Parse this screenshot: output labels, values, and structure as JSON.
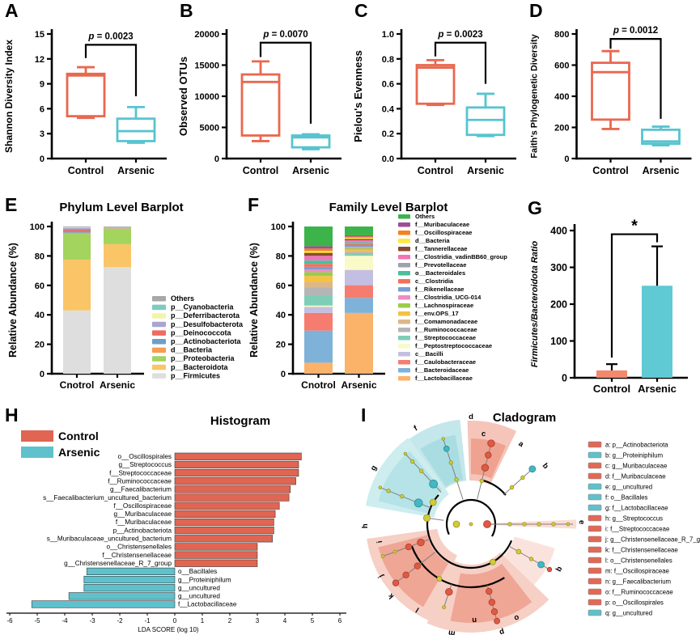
{
  "chart_data": [
    {
      "panel_label": "A",
      "type": "box",
      "ylabel": "Shannon Diversity Index",
      "ylim": [
        0,
        15
      ],
      "yticks": [
        "0",
        "3",
        "6",
        "9",
        "12",
        "15"
      ],
      "p_label": "p = 0.0023",
      "categories": [
        "Control",
        "Arsenic"
      ],
      "series": [
        {
          "name": "Control",
          "color": "#E9684F",
          "whisker_low": 4.9,
          "q1": 5.1,
          "median": 10.0,
          "q3": 10.2,
          "whisker_high": 11.0
        },
        {
          "name": "Arsenic",
          "color": "#57C4CF",
          "whisker_low": 1.9,
          "q1": 2.1,
          "median": 3.3,
          "q3": 4.8,
          "whisker_high": 6.2
        }
      ],
      "bracket": {
        "from": 12.1,
        "top": 13.7,
        "to": 7.5
      }
    },
    {
      "panel_label": "B",
      "type": "box",
      "ylabel": "Observed OTUs",
      "ylim": [
        0,
        20000
      ],
      "yticks": [
        "0",
        "5000",
        "10000",
        "15000",
        "20000"
      ],
      "p_label": "p = 0.0070",
      "categories": [
        "Control",
        "Arsenic"
      ],
      "series": [
        {
          "name": "Control",
          "color": "#E9684F",
          "whisker_low": 2800,
          "q1": 3700,
          "median": 12300,
          "q3": 13500,
          "whisker_high": 15600
        },
        {
          "name": "Arsenic",
          "color": "#57C4CF",
          "whisker_low": 1500,
          "q1": 1800,
          "median": 3400,
          "q3": 3700,
          "whisker_high": 3900
        }
      ],
      "bracket": {
        "from": 16300,
        "top": 18600,
        "to": 5600
      }
    },
    {
      "panel_label": "C",
      "type": "box",
      "ylabel": "Pielou's Evenness",
      "ylim": [
        0,
        1
      ],
      "yticks": [
        "0.0",
        "0.2",
        "0.4",
        "0.6",
        "0.8",
        "1.0"
      ],
      "p_label": "p = 0.0023",
      "categories": [
        "Control",
        "Arsenic"
      ],
      "series": [
        {
          "name": "Control",
          "color": "#E9684F",
          "whisker_low": 0.43,
          "q1": 0.44,
          "median": 0.73,
          "q3": 0.75,
          "whisker_high": 0.79
        },
        {
          "name": "Arsenic",
          "color": "#57C4CF",
          "whisker_low": 0.18,
          "q1": 0.19,
          "median": 0.31,
          "q3": 0.41,
          "whisker_high": 0.52
        }
      ],
      "bracket": {
        "from": 0.82,
        "top": 0.93,
        "to": 0.6
      }
    },
    {
      "panel_label": "D",
      "type": "box",
      "ylabel": "Faith's Phylogenetic Diversity",
      "ylim": [
        0,
        800
      ],
      "yticks": [
        "0",
        "200",
        "400",
        "600",
        "800"
      ],
      "p_label": "p = 0.0012",
      "categories": [
        "Control",
        "Arsenic"
      ],
      "series": [
        {
          "name": "Control",
          "color": "#E9684F",
          "whisker_low": 190,
          "q1": 250,
          "median": 555,
          "q3": 615,
          "whisker_high": 690
        },
        {
          "name": "Arsenic",
          "color": "#57C4CF",
          "whisker_low": 85,
          "q1": 95,
          "median": 110,
          "q3": 185,
          "whisker_high": 205
        }
      ],
      "bracket": {
        "from": 705,
        "top": 768,
        "to": 255
      }
    },
    {
      "panel_label": "E",
      "type": "bar",
      "stacked": true,
      "title": "Phylum Level Barplot",
      "ylabel": "Relative Abundance (%)",
      "ylim": [
        0,
        100
      ],
      "yticks": [
        "0",
        "20",
        "40",
        "60",
        "80",
        "100"
      ],
      "categories": [
        "Cnotrol",
        "Arsenic"
      ],
      "series": [
        {
          "name": "p__Firmicutes",
          "color": "#DEDEDE",
          "values": [
            43.0,
            72.5
          ]
        },
        {
          "name": "p__Bacteroidota",
          "color": "#FAC566",
          "values": [
            34.5,
            15.5
          ]
        },
        {
          "name": "p__Proteobacteria",
          "color": "#A2D45E",
          "values": [
            17.5,
            10.5
          ]
        },
        {
          "name": "d__Bacteria",
          "color": "#F79C50",
          "values": [
            0.8,
            0.3
          ]
        },
        {
          "name": "p__Actinobacteriota",
          "color": "#6B9FC8",
          "values": [
            1.2,
            0.2
          ]
        },
        {
          "name": "p__Deinococcota",
          "color": "#F16A5E",
          "values": [
            1.2,
            0.2
          ]
        },
        {
          "name": "p__Desulfobacterota",
          "color": "#A9A5CF",
          "values": [
            0.8,
            0.2
          ]
        },
        {
          "name": "p__Deferribacterota",
          "color": "#F5F3A8",
          "values": [
            0.3,
            0.1
          ]
        },
        {
          "name": "p__Cyanobacteria",
          "color": "#7DCCC0",
          "values": [
            0.2,
            0.1
          ]
        },
        {
          "name": "Others",
          "color": "#A8A8A8",
          "values": [
            0.5,
            0.4
          ]
        }
      ]
    },
    {
      "panel_label": "F",
      "type": "bar",
      "stacked": true,
      "title": "Family Level Barplot",
      "ylabel": "Relative Abundance (%)",
      "ylim": [
        0,
        100
      ],
      "yticks": [
        "0",
        "20",
        "40",
        "60",
        "80",
        "100"
      ],
      "categories": [
        "Cnotrol",
        "Arsenic"
      ],
      "series": [
        {
          "name": "f__Lactobacillaceae",
          "color": "#FBB269",
          "values": [
            7.5,
            41.3
          ]
        },
        {
          "name": "f__Bacteroidaceae",
          "color": "#7FB2D8",
          "values": [
            21.8,
            10.2
          ]
        },
        {
          "name": "f__Caulobacteraceae",
          "color": "#F57C6E",
          "values": [
            12.0,
            8.6
          ]
        },
        {
          "name": "c__Bacilli",
          "color": "#C3BFE3",
          "values": [
            4.1,
            10.4
          ]
        },
        {
          "name": "f__Peptostreptococcaceae",
          "color": "#FAFAC8",
          "values": [
            0.9,
            9.6
          ]
        },
        {
          "name": "f__Streptococcaceae",
          "color": "#7ECEB6",
          "values": [
            6.7,
            1.2
          ]
        },
        {
          "name": "f__Ruminococcaceae",
          "color": "#B5B5B5",
          "values": [
            5.5,
            1.2
          ]
        },
        {
          "name": "f__Comamonadaceae",
          "color": "#DDB787",
          "values": [
            3.9,
            1.0
          ]
        },
        {
          "name": "f__env.OPS_17",
          "color": "#F5C242",
          "values": [
            4.0,
            0.8
          ]
        },
        {
          "name": "f__Lachnospiraceae",
          "color": "#9ACD4C",
          "values": [
            2.6,
            1.0
          ]
        },
        {
          "name": "f__Clostridia_UCG-014",
          "color": "#F08CC0",
          "values": [
            1.7,
            0.9
          ]
        },
        {
          "name": "f__Rikenellaceae",
          "color": "#7B9FD4",
          "values": [
            1.9,
            0.9
          ]
        },
        {
          "name": "c__Clostridia",
          "color": "#F2705B",
          "values": [
            2.0,
            0.9
          ]
        },
        {
          "name": "o__Bacteroidales",
          "color": "#4DBD9A",
          "values": [
            1.8,
            0.9
          ]
        },
        {
          "name": "f__Prevotellaceae",
          "color": "#9CA3AF",
          "values": [
            1.6,
            0.9
          ]
        },
        {
          "name": "f__Clostridia_vadinBB60_group",
          "color": "#F472B6",
          "values": [
            2.1,
            0.9
          ]
        },
        {
          "name": "f__Tannerellaceae",
          "color": "#8B4A2F",
          "values": [
            2.0,
            0.9
          ]
        },
        {
          "name": "d__Bacteria",
          "color": "#FFE93B",
          "values": [
            1.3,
            0.8
          ]
        },
        {
          "name": "f__Oscillospiraceae",
          "color": "#F58220",
          "values": [
            1.6,
            0.8
          ]
        },
        {
          "name": "f__Muribaculaceae",
          "color": "#9C4F96",
          "values": [
            1.6,
            0.8
          ]
        },
        {
          "name": "Others",
          "color": "#3CB44A",
          "values": [
            13.4,
            6.0
          ]
        }
      ]
    },
    {
      "panel_label": "G",
      "type": "bar",
      "ylabel": "Firmicutes/Bacteroidota Ratio",
      "ylim": [
        0,
        400
      ],
      "yticks": [
        "0",
        "100",
        "200",
        "300",
        "400"
      ],
      "categories": [
        "Control",
        "Arsenic"
      ],
      "values": [
        20,
        250
      ],
      "error_high": [
        37,
        357
      ],
      "colors": [
        "#F2886C",
        "#5FC9D4"
      ],
      "sig_label": "*"
    },
    {
      "panel_label": "H",
      "type": "bar",
      "orientation": "horizontal",
      "title": "Histogram",
      "xlabel": "LDA SCORE (log 10)",
      "xlim": [
        -6,
        6
      ],
      "xticks": [
        "-6",
        "-5",
        "-4",
        "-3",
        "-2",
        "-1",
        "0",
        "1",
        "2",
        "3",
        "4",
        "5",
        "6"
      ],
      "legend": [
        {
          "label": "Control",
          "color": "#E06552"
        },
        {
          "label": "Arsenic",
          "color": "#5EC1CC"
        }
      ],
      "features": [
        {
          "label": "o__Oscillospirales",
          "group": "Control",
          "lda": 4.6
        },
        {
          "label": "g__Streptococcus",
          "group": "Control",
          "lda": 4.5
        },
        {
          "label": "f__Streptococcaceae",
          "group": "Control",
          "lda": 4.5
        },
        {
          "label": "f__Ruminococcaceae",
          "group": "Control",
          "lda": 4.4
        },
        {
          "label": "g__Faecalibacterium",
          "group": "Control",
          "lda": 4.2
        },
        {
          "label": "s__Faecalibacterium_uncultured_bacterium",
          "group": "Control",
          "lda": 4.15
        },
        {
          "label": "f__Oscillospiraceae",
          "group": "Control",
          "lda": 3.8
        },
        {
          "label": "g__Muribaculaceae",
          "group": "Control",
          "lda": 3.65
        },
        {
          "label": "f__Muribaculaceae",
          "group": "Control",
          "lda": 3.6
        },
        {
          "label": "p__Actinobacteriota",
          "group": "Control",
          "lda": 3.6
        },
        {
          "label": "s__Muribaculaceae_uncultured_bacterium",
          "group": "Control",
          "lda": 3.55
        },
        {
          "label": "o__Christensenellales",
          "group": "Control",
          "lda": 3.0
        },
        {
          "label": "f__Christensenellaceae",
          "group": "Control",
          "lda": 3.0
        },
        {
          "label": "g__Christensenellaceae_R_7_group",
          "group": "Control",
          "lda": 3.0
        },
        {
          "label": "o__Bacillales",
          "group": "Arsenic",
          "lda": 3.2
        },
        {
          "label": "g__Proteiniphilum",
          "group": "Arsenic",
          "lda": 3.3
        },
        {
          "label": "g__uncultured",
          "group": "Arsenic",
          "lda": 3.3
        },
        {
          "label": "g__uncultured",
          "group": "Arsenic",
          "lda": 3.85
        },
        {
          "label": "f__Lactobacillaceae",
          "group": "Arsenic",
          "lda": 5.2
        }
      ]
    },
    {
      "panel_label": "I",
      "type": "cladogram",
      "title": "Cladogram",
      "class_colors": {
        "Control": "#E26856",
        "Arsenic": "#5FC0CB"
      },
      "legend": [
        {
          "key": "a",
          "label": "p__Actinobacteriota",
          "group": "Control"
        },
        {
          "key": "b",
          "label": "g__Proteiniphilum",
          "group": "Arsenic"
        },
        {
          "key": "c",
          "label": "g__Muribaculaceae",
          "group": "Control"
        },
        {
          "key": "d",
          "label": "f__Muribaculaceae",
          "group": "Control"
        },
        {
          "key": "e",
          "label": "g__uncultured",
          "group": "Arsenic"
        },
        {
          "key": "f",
          "label": "o__Bacillales",
          "group": "Arsenic"
        },
        {
          "key": "g",
          "label": "f__Lactobacillaceae",
          "group": "Arsenic"
        },
        {
          "key": "h",
          "label": "g__Streptococcus",
          "group": "Control"
        },
        {
          "key": "i",
          "label": "f__Streptococcaceae",
          "group": "Control"
        },
        {
          "key": "j",
          "label": "g__Christensenellaceae_R_7_group",
          "group": "Control"
        },
        {
          "key": "k",
          "label": "f__Christensenellaceae",
          "group": "Control"
        },
        {
          "key": "l",
          "label": "o__Christensenellales",
          "group": "Control"
        },
        {
          "key": "m",
          "label": "f__Oscillospiraceae",
          "group": "Control"
        },
        {
          "key": "n",
          "label": "g__Faecalibacterium",
          "group": "Control"
        },
        {
          "key": "o",
          "label": "f__Ruminococcaceae",
          "group": "Control"
        },
        {
          "key": "p",
          "label": "o__Oscillospirales",
          "group": "Control"
        },
        {
          "key": "q",
          "label": "g__uncultured",
          "group": "Arsenic"
        }
      ]
    }
  ]
}
